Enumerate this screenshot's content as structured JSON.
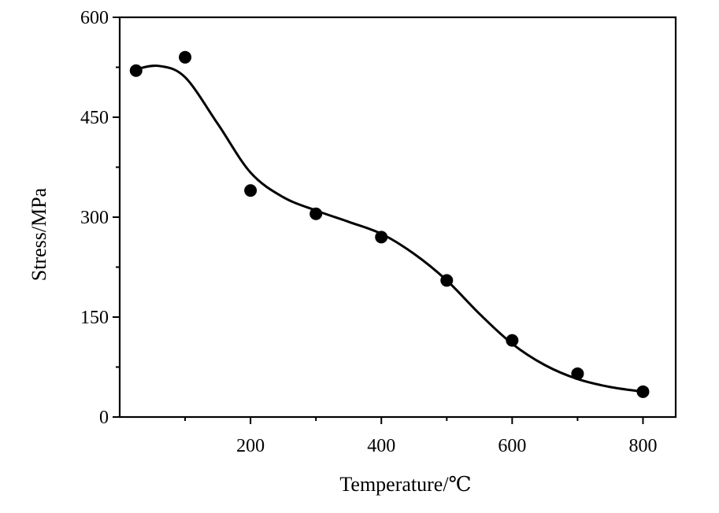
{
  "chart_data": {
    "type": "scatter",
    "xlabel": "Temperature/℃",
    "ylabel": "Stress/MPa",
    "xlim": [
      0,
      850
    ],
    "ylim": [
      0,
      600
    ],
    "x_ticks": [
      200,
      400,
      600,
      800
    ],
    "y_ticks": [
      0,
      150,
      300,
      450,
      600
    ],
    "grid": false,
    "series": [
      {
        "x": [
          25,
          100,
          200,
          300,
          400,
          500,
          600,
          700,
          800
        ],
        "y": [
          520,
          540,
          340,
          305,
          270,
          205,
          115,
          65,
          38
        ]
      }
    ],
    "fit_curve": {
      "x": [
        25,
        60,
        100,
        150,
        200,
        250,
        300,
        350,
        400,
        450,
        500,
        550,
        600,
        650,
        700,
        750,
        800
      ],
      "y": [
        522,
        527,
        510,
        440,
        367,
        330,
        310,
        293,
        275,
        245,
        205,
        155,
        110,
        78,
        57,
        45,
        38
      ]
    }
  }
}
